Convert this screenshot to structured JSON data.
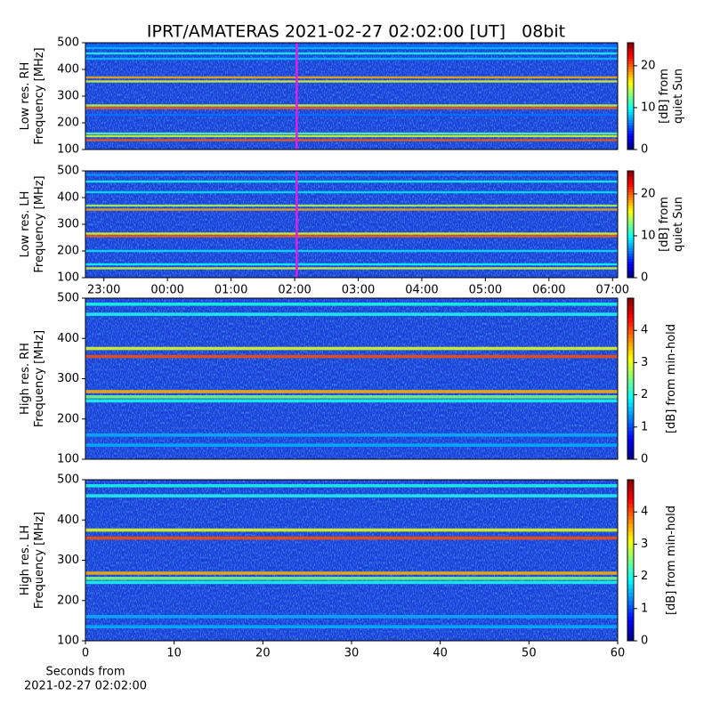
{
  "chart_data": [
    {
      "type": "heatmap",
      "title": "IPRT/AMATERAS 2021-02-27 02:02:00 [UT]   08bit",
      "ylabel": [
        "Low res. RH",
        "Frequency [MHz]"
      ],
      "colorbar_label": [
        "[dB] from",
        "quiet Sun"
      ],
      "xlim": [
        -1.29,
        7.08
      ],
      "marker_x": 2.0333,
      "marker_color": "#e020e0",
      "ylim": [
        100,
        500
      ],
      "yticks": [
        100,
        200,
        300,
        400,
        500
      ],
      "clim": [
        0,
        25.5
      ],
      "cticks": [
        0,
        10,
        20
      ],
      "frequencies": [
        135,
        150,
        160,
        230,
        255,
        265,
        355,
        370,
        440,
        460,
        480,
        490
      ],
      "values": [
        20,
        15,
        12,
        6,
        20,
        15,
        15,
        18,
        8,
        10,
        8,
        6
      ]
    },
    {
      "type": "heatmap",
      "ylabel": [
        "Low res. LH",
        "Frequency [MHz]"
      ],
      "colorbar_label": [
        "[dB] from",
        "quiet Sun"
      ],
      "xlim": [
        -1.29,
        7.08
      ],
      "marker_x": 2.0333,
      "marker_color": "#e020e0",
      "xticks": [
        {
          "value": -1,
          "label": "23:00"
        },
        {
          "value": 0,
          "label": "00:00"
        },
        {
          "value": 1,
          "label": "01:00"
        },
        {
          "value": 2,
          "label": "02:00"
        },
        {
          "value": 3,
          "label": "03:00"
        },
        {
          "value": 4,
          "label": "04:00"
        },
        {
          "value": 5,
          "label": "05:00"
        },
        {
          "value": 6,
          "label": "06:00"
        },
        {
          "value": 7,
          "label": "07:00"
        }
      ],
      "ylim": [
        100,
        500
      ],
      "yticks": [
        100,
        200,
        300,
        400,
        500
      ],
      "clim": [
        0,
        25.5
      ],
      "cticks": [
        0,
        10,
        20
      ],
      "frequencies": [
        135,
        150,
        200,
        255,
        265,
        355,
        370,
        420,
        460,
        485
      ],
      "values": [
        15,
        10,
        9,
        20,
        16,
        18,
        14,
        9,
        10,
        7
      ]
    },
    {
      "type": "heatmap",
      "ylabel": [
        "High res. RH",
        "Frequency [MHz]"
      ],
      "colorbar_label": [
        "[dB] from min-hold"
      ],
      "xlim": [
        0,
        60
      ],
      "ylim": [
        100,
        500
      ],
      "yticks": [
        100,
        200,
        300,
        400,
        500
      ],
      "clim": [
        0,
        5
      ],
      "cticks": [
        0,
        1,
        2,
        3,
        4
      ],
      "frequencies": [
        135,
        160,
        245,
        255,
        268,
        355,
        375,
        460,
        485
      ],
      "values": [
        1.5,
        1.5,
        2,
        2.5,
        3.5,
        4,
        3,
        2,
        2
      ]
    },
    {
      "type": "heatmap",
      "ylabel": [
        "High res. LH",
        "Frequency [MHz]"
      ],
      "colorbar_label": [
        "[dB] from min-hold"
      ],
      "xlabel": [
        "Seconds from",
        "2021-02-27 02:02:00"
      ],
      "xlim": [
        0,
        60
      ],
      "xticks": [
        0,
        10,
        20,
        30,
        40,
        50,
        60
      ],
      "ylim": [
        100,
        500
      ],
      "yticks": [
        100,
        200,
        300,
        400,
        500
      ],
      "clim": [
        0,
        5
      ],
      "cticks": [
        0,
        1,
        2,
        3,
        4
      ],
      "frequencies": [
        135,
        160,
        245,
        255,
        268,
        355,
        375,
        460,
        485
      ],
      "values": [
        1.5,
        1.5,
        2,
        2.5,
        3.5,
        4,
        3,
        2,
        2
      ]
    }
  ]
}
